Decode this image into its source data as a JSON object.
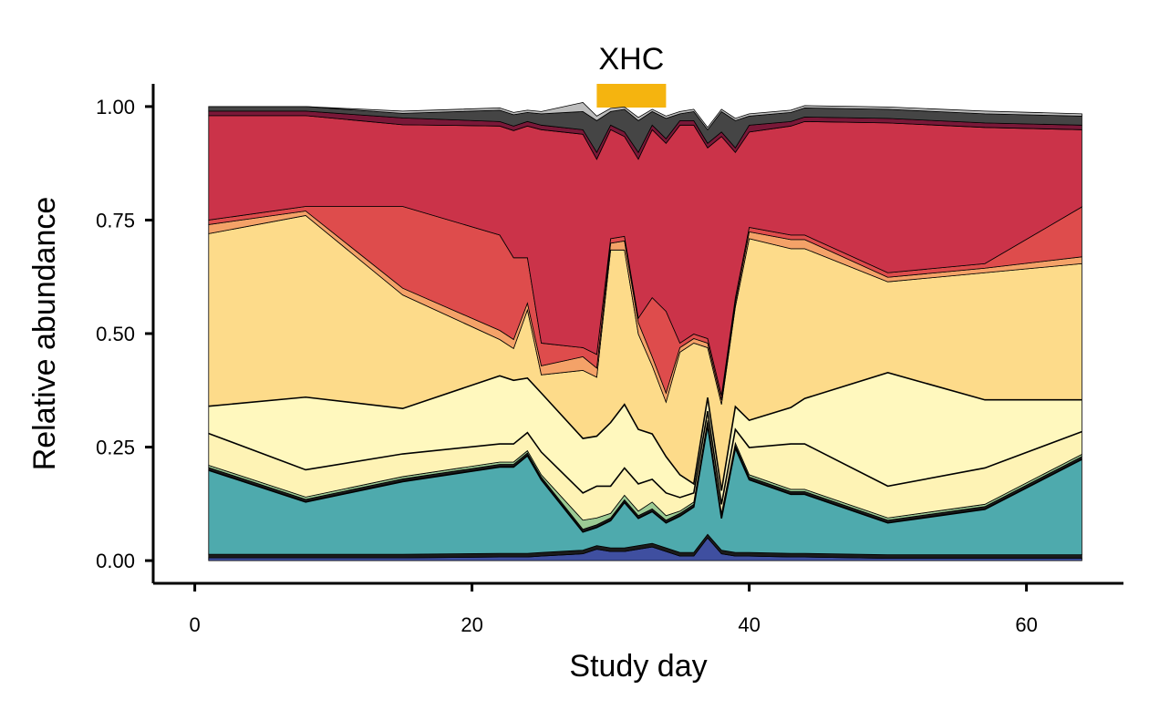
{
  "chart_data": {
    "type": "area",
    "stacked": true,
    "xlabel": "Study day",
    "ylabel": "Relative abundance",
    "xlim": [
      -3,
      67
    ],
    "ylim": [
      -0.05,
      1.05
    ],
    "x_ticks": [
      0,
      20,
      40,
      60
    ],
    "x_tick_labels": [
      "0",
      "20",
      "40",
      "60"
    ],
    "y_ticks": [
      0,
      0.25,
      0.5,
      0.75,
      1
    ],
    "y_tick_labels": [
      "0.00",
      "0.25",
      "0.50",
      "0.75",
      "1.00"
    ],
    "grid": false,
    "legend": "none",
    "annotation": {
      "label": "XHC",
      "x_start": 29,
      "x_end": 34,
      "color": "#F5B40F"
    },
    "x": [
      1,
      8,
      15,
      22,
      23,
      24,
      25,
      28,
      29,
      30,
      31,
      32,
      33,
      34,
      35,
      36,
      37,
      38,
      39,
      40,
      43,
      44,
      50,
      57,
      64
    ],
    "series": [
      {
        "color": "#3F4FA0",
        "values": [
          0.006,
          0.006,
          0.006,
          0.008,
          0.008,
          0.008,
          0.01,
          0.015,
          0.025,
          0.02,
          0.02,
          0.025,
          0.03,
          0.02,
          0.01,
          0.01,
          0.05,
          0.015,
          0.01,
          0.01,
          0.008,
          0.008,
          0.005,
          0.005,
          0.005
        ]
      },
      {
        "color": "#1B1B1B",
        "values": [
          0.008,
          0.008,
          0.008,
          0.008,
          0.008,
          0.008,
          0.008,
          0.008,
          0.008,
          0.008,
          0.008,
          0.008,
          0.008,
          0.008,
          0.008,
          0.008,
          0.008,
          0.008,
          0.008,
          0.008,
          0.008,
          0.008,
          0.008,
          0.008,
          0.008
        ]
      },
      {
        "color": "#4EAAAD",
        "values": [
          0.185,
          0.115,
          0.16,
          0.19,
          0.19,
          0.215,
          0.16,
          0.04,
          0.04,
          0.06,
          0.1,
          0.06,
          0.07,
          0.055,
          0.08,
          0.1,
          0.24,
          0.07,
          0.23,
          0.16,
          0.13,
          0.13,
          0.07,
          0.1,
          0.21
        ]
      },
      {
        "color": "#1B1B1B",
        "values": [
          0.006,
          0.006,
          0.006,
          0.006,
          0.006,
          0.006,
          0.006,
          0.006,
          0.006,
          0.006,
          0.006,
          0.006,
          0.006,
          0.006,
          0.006,
          0.006,
          0.006,
          0.006,
          0.006,
          0.006,
          0.006,
          0.006,
          0.006,
          0.006,
          0.006
        ]
      },
      {
        "color": "#9CCB94",
        "values": [
          0.005,
          0.005,
          0.005,
          0.005,
          0.005,
          0.005,
          0.005,
          0.02,
          0.015,
          0.01,
          0.01,
          0.01,
          0.015,
          0.01,
          0.005,
          0.005,
          0.005,
          0.005,
          0.005,
          0.005,
          0.005,
          0.005,
          0.005,
          0.005,
          0.005
        ]
      },
      {
        "color": "#FEF3B5",
        "values": [
          0.07,
          0.06,
          0.05,
          0.04,
          0.04,
          0.04,
          0.05,
          0.06,
          0.07,
          0.06,
          0.06,
          0.06,
          0.05,
          0.05,
          0.03,
          0.02,
          0.02,
          0.02,
          0.03,
          0.06,
          0.1,
          0.1,
          0.07,
          0.08,
          0.05
        ]
      },
      {
        "color": "#FFF8BE",
        "values": [
          0.06,
          0.16,
          0.1,
          0.15,
          0.14,
          0.12,
          0.13,
          0.12,
          0.11,
          0.14,
          0.14,
          0.12,
          0.1,
          0.08,
          0.05,
          0.02,
          0.03,
          0.03,
          0.05,
          0.06,
          0.08,
          0.1,
          0.25,
          0.15,
          0.07
        ]
      },
      {
        "color": "#FDDB8A",
        "values": [
          0.38,
          0.4,
          0.25,
          0.08,
          0.07,
          0.15,
          0.04,
          0.15,
          0.13,
          0.38,
          0.34,
          0.21,
          0.15,
          0.12,
          0.27,
          0.31,
          0.11,
          0.19,
          0.22,
          0.4,
          0.35,
          0.33,
          0.2,
          0.28,
          0.3
        ]
      },
      {
        "color": "#F4A268",
        "values": [
          0.02,
          0.01,
          0.015,
          0.02,
          0.02,
          0.015,
          0.02,
          0.03,
          0.02,
          0.015,
          0.02,
          0.025,
          0.02,
          0.02,
          0.01,
          0.01,
          0.01,
          0.01,
          0.01,
          0.015,
          0.02,
          0.02,
          0.01,
          0.01,
          0.015
        ]
      },
      {
        "color": "#DE4C4C",
        "values": [
          0.01,
          0.01,
          0.18,
          0.21,
          0.18,
          0.1,
          0.05,
          0.02,
          0.03,
          0.01,
          0.01,
          0.01,
          0.13,
          0.18,
          0.01,
          0.01,
          0.01,
          0.01,
          0.01,
          0.01,
          0.01,
          0.01,
          0.01,
          0.01,
          0.11
        ]
      },
      {
        "color": "#CB3349",
        "values": [
          0.23,
          0.2,
          0.18,
          0.24,
          0.28,
          0.29,
          0.47,
          0.47,
          0.43,
          0.24,
          0.22,
          0.35,
          0.37,
          0.37,
          0.48,
          0.46,
          0.42,
          0.57,
          0.32,
          0.21,
          0.24,
          0.25,
          0.33,
          0.3,
          0.17
        ]
      },
      {
        "color": "#7A1838",
        "values": [
          0.01,
          0.01,
          0.015,
          0.01,
          0.01,
          0.01,
          0.01,
          0.01,
          0.015,
          0.01,
          0.01,
          0.015,
          0.01,
          0.01,
          0.01,
          0.01,
          0.01,
          0.01,
          0.01,
          0.015,
          0.01,
          0.01,
          0.01,
          0.01,
          0.01
        ]
      },
      {
        "color": "#454545",
        "values": [
          0.01,
          0.01,
          0.01,
          0.025,
          0.025,
          0.02,
          0.025,
          0.04,
          0.07,
          0.03,
          0.05,
          0.07,
          0.03,
          0.045,
          0.015,
          0.02,
          0.03,
          0.045,
          0.06,
          0.02,
          0.02,
          0.02,
          0.02,
          0.02,
          0.02
        ]
      },
      {
        "color": "#BDBDBD",
        "values": [
          0.0,
          0.0,
          0.005,
          0.005,
          0.005,
          0.005,
          0.005,
          0.02,
          0.01,
          0.007,
          0.005,
          0.007,
          0.005,
          0.005,
          0.005,
          0.005,
          0.005,
          0.005,
          0.005,
          0.005,
          0.005,
          0.005,
          0.005,
          0.006,
          0.005
        ]
      }
    ]
  }
}
